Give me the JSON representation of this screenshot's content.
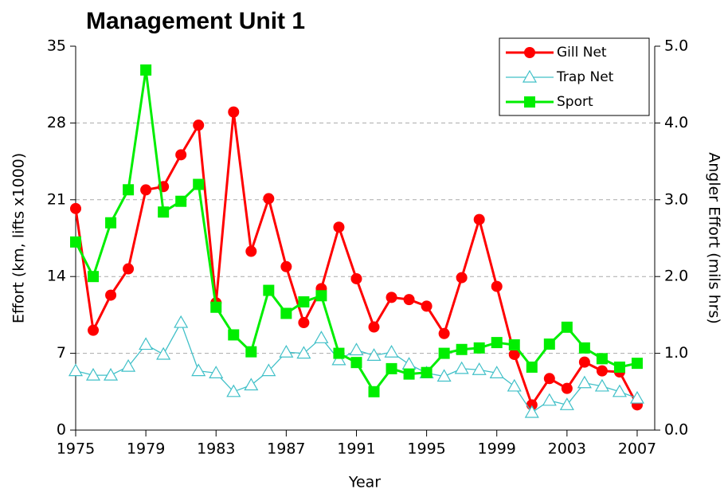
{
  "chart_data": {
    "type": "line",
    "title": "Management Unit 1",
    "x_label": "Year",
    "y_label": "Effort (km, lifts x1000)",
    "y2_label": "Angler Effort (mils hrs)",
    "x": [
      1975,
      1976,
      1977,
      1978,
      1979,
      1980,
      1981,
      1982,
      1983,
      1984,
      1985,
      1986,
      1987,
      1988,
      1989,
      1990,
      1991,
      1992,
      1993,
      1994,
      1995,
      1996,
      1997,
      1998,
      1999,
      2000,
      2001,
      2002,
      2003,
      2004,
      2005,
      2006,
      2007
    ],
    "xlim": [
      1975,
      2008
    ],
    "xticks": [
      1975,
      1979,
      1983,
      1987,
      1991,
      1995,
      1999,
      2003,
      2007
    ],
    "ylim": [
      0,
      35
    ],
    "yticks": [
      0,
      7,
      14,
      21,
      28,
      35
    ],
    "y2lim": [
      0,
      5
    ],
    "y2ticks": [
      {
        "value": 0,
        "label": "0.0"
      },
      {
        "value": 1,
        "label": "1.0"
      },
      {
        "value": 2,
        "label": "2.0"
      },
      {
        "value": 3,
        "label": "3.0"
      },
      {
        "value": 4,
        "label": "4.0"
      },
      {
        "value": 5,
        "label": "5.0"
      }
    ],
    "grid": true,
    "legend": "upper right",
    "series": [
      {
        "name": "Gill Net",
        "color": "#ff0000",
        "marker": "circle",
        "values": [
          20.2,
          9.1,
          12.3,
          14.7,
          21.9,
          22.2,
          25.1,
          27.8,
          11.6,
          29.0,
          16.3,
          21.1,
          14.9,
          9.8,
          12.9,
          18.5,
          13.8,
          9.4,
          12.1,
          11.9,
          11.3,
          8.8,
          13.9,
          19.2,
          13.1,
          6.9,
          2.3,
          4.7,
          3.8,
          6.2,
          5.4,
          5.3,
          2.3
        ]
      },
      {
        "name": "Trap Net",
        "color": "#40c0c8",
        "marker": "triangle",
        "values": [
          5.4,
          5.0,
          5.0,
          5.8,
          7.8,
          6.9,
          9.8,
          5.4,
          5.2,
          3.5,
          4.1,
          5.4,
          7.1,
          7.0,
          8.4,
          6.4,
          7.3,
          6.8,
          7.1,
          6.0,
          5.2,
          4.9,
          5.6,
          5.5,
          5.2,
          4.0,
          1.6,
          2.7,
          2.3,
          4.3,
          4.0,
          3.5,
          2.9
        ]
      },
      {
        "name": "Sport",
        "color": "#00ee00",
        "marker": "square",
        "axis": "y2",
        "values": [
          2.45,
          2.0,
          2.7,
          3.13,
          4.69,
          2.84,
          2.98,
          3.2,
          1.6,
          1.24,
          1.02,
          1.82,
          1.52,
          1.67,
          1.75,
          1.0,
          0.88,
          0.5,
          0.8,
          0.73,
          0.75,
          1.0,
          1.05,
          1.07,
          1.14,
          1.11,
          0.82,
          1.12,
          1.34,
          1.07,
          0.93,
          0.82,
          0.87
        ]
      }
    ]
  }
}
